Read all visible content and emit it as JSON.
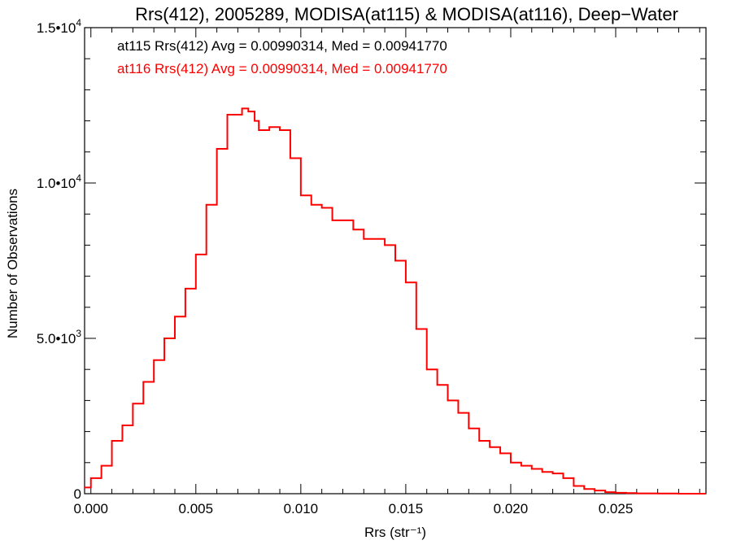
{
  "chart_data": {
    "type": "line",
    "title": "Rrs(412), 2005289, MODISA(at115) & MODISA(at116), Deep−Water",
    "xlabel": "Rrs (str⁻¹)",
    "ylabel": "Number of Observations",
    "xlim": [
      -0.0003,
      0.0293
    ],
    "ylim": [
      0,
      15000
    ],
    "x_ticks": [
      0.0,
      0.005,
      0.01,
      0.015,
      0.02,
      0.025
    ],
    "x_tick_labels": [
      "0.000",
      "0.005",
      "0.010",
      "0.015",
      "0.020",
      "0.025"
    ],
    "y_ticks": [
      0,
      5000,
      10000,
      15000
    ],
    "y_tick_labels": [
      {
        "mantissa": "0",
        "exp": ""
      },
      {
        "mantissa": "5.0•10",
        "exp": "3"
      },
      {
        "mantissa": "1.0•10",
        "exp": "4"
      },
      {
        "mantissa": "1.5•10",
        "exp": "4"
      }
    ],
    "grid": false,
    "annotations": [
      {
        "text": "at115 Rrs(412) Avg = 0.00990314, Med = 0.00941770",
        "color": "#000000"
      },
      {
        "text": "at116 Rrs(412) Avg = 0.00990314, Med = 0.00941770",
        "color": "#ff0000"
      }
    ],
    "series": [
      {
        "color": "#ff0000",
        "x": [
          -0.0003,
          0.0,
          0.0005,
          0.001,
          0.0015,
          0.002,
          0.0025,
          0.003,
          0.0035,
          0.004,
          0.0045,
          0.005,
          0.0055,
          0.006,
          0.0065,
          0.007,
          0.0072,
          0.0075,
          0.0078,
          0.008,
          0.0085,
          0.009,
          0.0095,
          0.01,
          0.0105,
          0.011,
          0.0115,
          0.012,
          0.0125,
          0.013,
          0.0135,
          0.014,
          0.0145,
          0.015,
          0.0155,
          0.016,
          0.0165,
          0.017,
          0.0175,
          0.018,
          0.0185,
          0.019,
          0.0195,
          0.02,
          0.0205,
          0.021,
          0.0215,
          0.022,
          0.0225,
          0.023,
          0.0235,
          0.024,
          0.0245,
          0.025,
          0.0255,
          0.026,
          0.027,
          0.028,
          0.0293
        ],
        "y": [
          200,
          500,
          900,
          1700,
          2200,
          2900,
          3600,
          4300,
          5000,
          5700,
          6600,
          7700,
          9300,
          11100,
          12200,
          12200,
          12400,
          12300,
          12000,
          11700,
          11800,
          11700,
          10800,
          9600,
          9300,
          9200,
          8800,
          8800,
          8500,
          8200,
          8200,
          8000,
          7500,
          6800,
          5300,
          4000,
          3500,
          3000,
          2600,
          2100,
          1700,
          1500,
          1300,
          1000,
          900,
          800,
          700,
          650,
          500,
          250,
          150,
          100,
          50,
          30,
          20,
          10,
          5,
          0,
          0
        ]
      }
    ]
  }
}
